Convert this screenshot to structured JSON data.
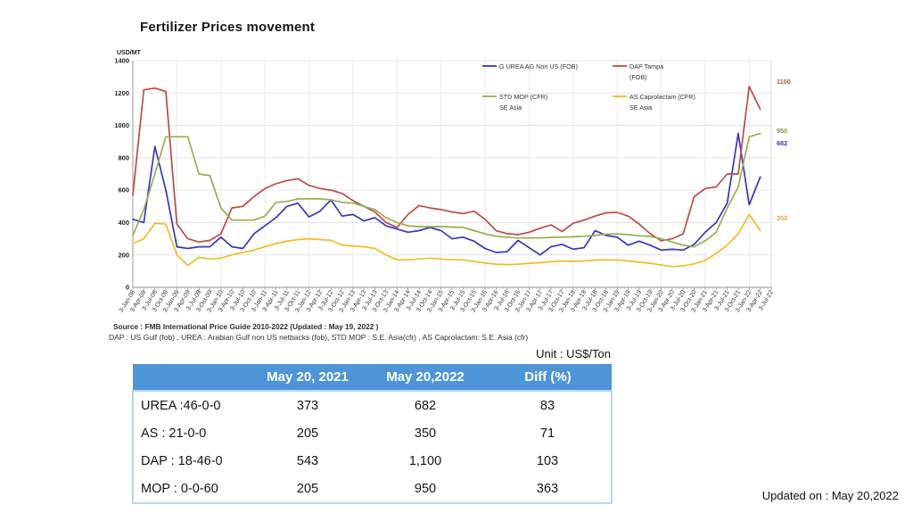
{
  "title": "Fertilizer Prices movement",
  "source_bold": "Source : FMB International Price Guide 2010-2022 (Updated : May 19, 2022 )",
  "source_detail": "DAP : US Gulf (fob) , UREA : Arabian Gulf non US netbacks (fob), STD MOP : S.E. Asia(cfr) , AS  Caprolactam: S.E. Asia (cfr)",
  "unit_label": "Unit : US$/Ton",
  "updated_label": "Updated on : May 20,2022",
  "chart_data": {
    "type": "line",
    "y_axis_label": "USD/MT",
    "ylim": [
      0,
      1400
    ],
    "y_tick_step": 200,
    "grid": "on",
    "legend_position": "top-center-inside",
    "x_labels": [
      "3-Jan-08",
      "3-Apr-08",
      "3-Jul-08",
      "3-Oct-08",
      "3-Jan-09",
      "3-Apr-09",
      "3-Jul-09",
      "3-Oct-09",
      "3-Jan-10",
      "3-Apr-10",
      "3-Jul-10",
      "3-Oct-10",
      "3-Jan-11",
      "3-Apr-11",
      "3-Jul-11",
      "3-Oct-11",
      "3-Jan-12",
      "3-Apr-12",
      "3-Jul-12",
      "3-Oct-12",
      "3-Jan-13",
      "3-Apr-13",
      "3-Jul-13",
      "3-Oct-13",
      "3-Jan-14",
      "3-Apr-14",
      "3-Jul-14",
      "3-Oct-14",
      "3-Jan-15",
      "3-Apr-15",
      "3-Jul-15",
      "3-Oct-15",
      "3-Jan-16",
      "3-Apr-16",
      "3-Jul-16",
      "3-Oct-16",
      "3-Jan-17",
      "3-Apr-17",
      "3-Jul-17",
      "3-Oct-17",
      "3-Jan-18",
      "3-Apr-18",
      "3-Jul-18",
      "3-Oct-18",
      "3-Jan-19",
      "3-Apr-19",
      "3-Jul-19",
      "3-Oct-19",
      "3-Jan-20",
      "3-Apr-20",
      "3-Jul-20",
      "3-Oct-20",
      "3-Jan-21",
      "3-Apr-21",
      "3-Jul-21",
      "3-Oct-21",
      "3-Jan-22",
      "3-Apr-22",
      "3-Jul-22"
    ],
    "series": [
      {
        "key": "urea",
        "name": "G UREA AG Non US (FOB)",
        "name_lines": [
          "G UREA AG Non US (FOB)"
        ],
        "color": "#3535C6",
        "values": [
          420,
          400,
          870,
          600,
          250,
          240,
          250,
          250,
          310,
          250,
          240,
          330,
          380,
          430,
          500,
          520,
          435,
          470,
          540,
          440,
          450,
          410,
          430,
          380,
          360,
          340,
          350,
          370,
          350,
          300,
          310,
          285,
          240,
          215,
          220,
          290,
          245,
          200,
          250,
          265,
          235,
          245,
          350,
          320,
          310,
          260,
          285,
          260,
          230,
          235,
          230,
          265,
          340,
          400,
          520,
          950,
          510,
          682
        ]
      },
      {
        "key": "dap",
        "name": "DAP Tampa (FOB)",
        "name_lines": [
          "DAP Tampa",
          "(FOB)"
        ],
        "color": "#BE4A47",
        "values": [
          570,
          1220,
          1230,
          1210,
          390,
          300,
          280,
          290,
          330,
          490,
          500,
          560,
          610,
          640,
          660,
          670,
          630,
          610,
          600,
          580,
          535,
          500,
          465,
          400,
          370,
          450,
          505,
          490,
          480,
          465,
          455,
          470,
          420,
          350,
          331,
          325,
          340,
          365,
          386,
          345,
          395,
          415,
          440,
          460,
          463,
          440,
          390,
          331,
          287,
          300,
          330,
          560,
          610,
          620,
          700,
          700,
          1240,
          1100
        ]
      },
      {
        "key": "mop",
        "name": "STD MOP (CFR) SE Asia",
        "name_lines": [
          "STD MOP (CFR)",
          "SE Asia"
        ],
        "color": "#95AF4E",
        "values": [
          320,
          480,
          700,
          930,
          930,
          930,
          700,
          690,
          490,
          415,
          415,
          415,
          440,
          525,
          530,
          546,
          546,
          546,
          540,
          525,
          520,
          500,
          480,
          430,
          400,
          380,
          375,
          375,
          375,
          372,
          370,
          350,
          330,
          315,
          310,
          305,
          305,
          305,
          308,
          310,
          312,
          315,
          320,
          328,
          330,
          325,
          318,
          314,
          300,
          280,
          260,
          250,
          287,
          340,
          490,
          620,
          930,
          950
        ]
      },
      {
        "key": "as",
        "name": "AS Caprolactam (CFR) SE Asia",
        "name_lines": [
          "AS Caprolactam (CFR)",
          "SE Asia"
        ],
        "color": "#F2BC1E",
        "values": [
          270,
          300,
          395,
          390,
          200,
          135,
          185,
          175,
          180,
          200,
          215,
          230,
          250,
          270,
          285,
          295,
          300,
          295,
          290,
          260,
          255,
          250,
          240,
          200,
          170,
          170,
          175,
          180,
          175,
          170,
          170,
          160,
          150,
          143,
          140,
          143,
          148,
          152,
          158,
          162,
          160,
          163,
          168,
          170,
          168,
          163,
          155,
          148,
          138,
          128,
          132,
          145,
          165,
          210,
          260,
          330,
          450,
          350
        ]
      }
    ],
    "end_labels": [
      {
        "text": "1100",
        "color": "#BE4A47",
        "y": 44
      },
      {
        "text": "950",
        "color": "#7E9B3F",
        "y": 99
      },
      {
        "text": "682",
        "color": "#3535C6",
        "y": 113
      },
      {
        "text": "350",
        "color": "#E8A934",
        "y": 197
      }
    ]
  },
  "table": {
    "header_bg": "#4D95D8",
    "headers": [
      "",
      "May 20, 2021",
      "May 20,2022",
      "Diff (%)"
    ],
    "rows": [
      {
        "label": "UREA :46-0-0",
        "may_2021": "373",
        "may_2022": "682",
        "diff": "83"
      },
      {
        "label": "AS : 21-0-0",
        "may_2021": "205",
        "may_2022": "350",
        "diff": "71"
      },
      {
        "label": "DAP : 18-46-0",
        "may_2021": "543",
        "may_2022": "1,100",
        "diff": "103"
      },
      {
        "label": "MOP : 0-0-60",
        "may_2021": "205",
        "may_2022": "950",
        "diff": "363"
      }
    ]
  }
}
